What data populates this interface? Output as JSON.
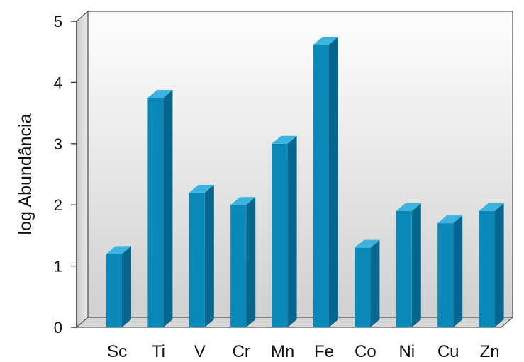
{
  "chart_data": {
    "type": "bar",
    "style": "3d",
    "title": "",
    "xlabel": "",
    "ylabel": "log Abundância",
    "ylim": [
      0,
      5
    ],
    "yticks": [
      "0",
      "1",
      "2",
      "3",
      "4",
      "5"
    ],
    "categories": [
      "Sc",
      "Ti",
      "V",
      "Cr",
      "Mn",
      "Fe",
      "Co",
      "Ni",
      "Cu",
      "Zn"
    ],
    "values": [
      1.2,
      3.75,
      2.2,
      2.0,
      3.0,
      4.62,
      1.3,
      1.9,
      1.7,
      1.9
    ],
    "grid": false,
    "legend": "none",
    "colors": {
      "bar_front": "#0a89b8",
      "bar_side": "#07668d",
      "bar_top": "#3cb4df",
      "wall_top": "#fefefe",
      "wall_bottom": "#d2d2d2",
      "floor": "#d9d9d9",
      "axis": "#333333"
    }
  }
}
